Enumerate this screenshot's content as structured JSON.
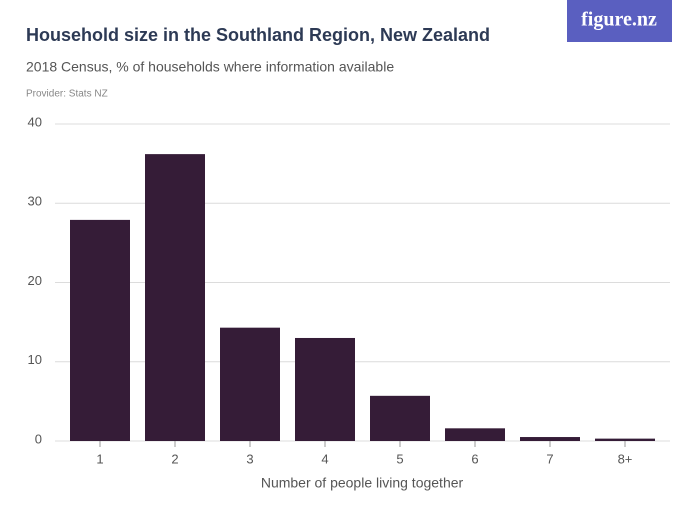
{
  "logo": "figure.nz",
  "chart_data": {
    "type": "bar",
    "title": "Household size in the Southland Region, New Zealand",
    "subtitle": "2018 Census, % of households where information available",
    "provider": "Provider: Stats NZ",
    "x_label": "Number of people living together",
    "categories": [
      "1",
      "2",
      "3",
      "4",
      "5",
      "6",
      "7",
      "8+"
    ],
    "values": [
      27.9,
      36.2,
      14.3,
      13.0,
      5.7,
      1.6,
      0.5,
      0.3
    ],
    "color": "#351c37",
    "ylim": [
      0,
      40
    ],
    "yticks": [
      0,
      10,
      20,
      30,
      40
    ],
    "grid": true
  }
}
